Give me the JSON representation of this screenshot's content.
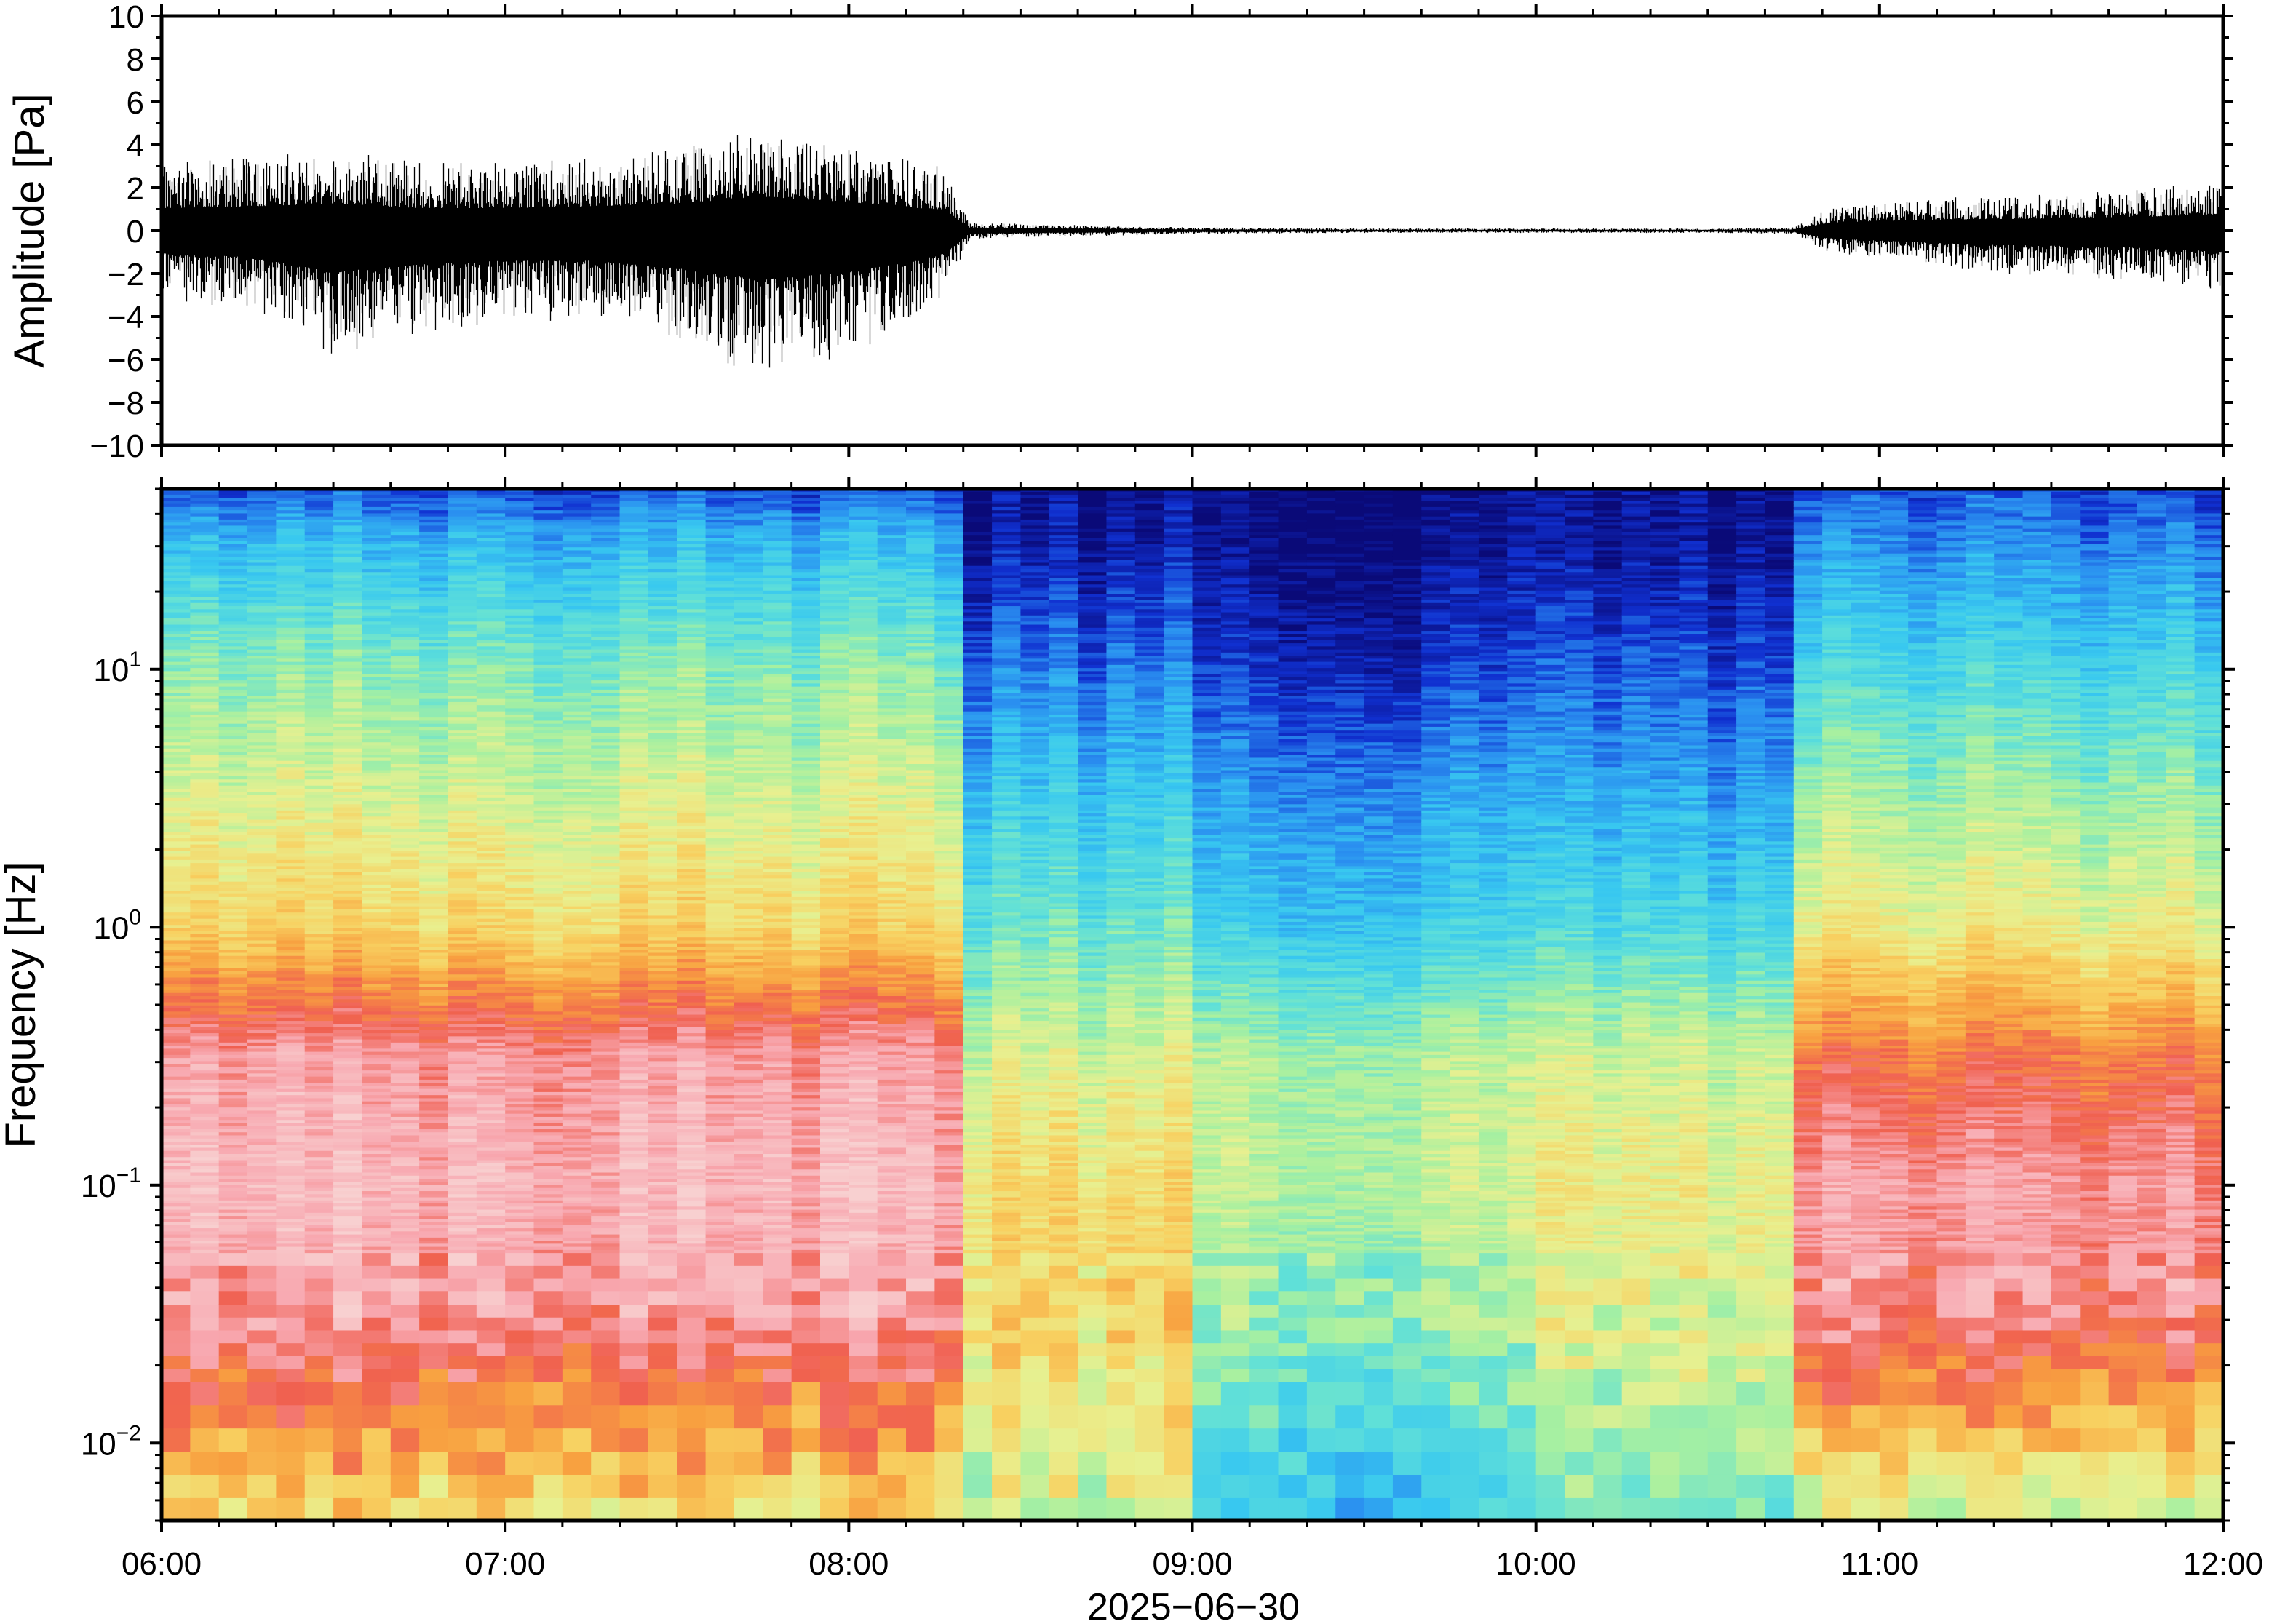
{
  "chart_data": [
    {
      "type": "line",
      "panel": "waveform",
      "ylabel": "Amplitude [Pa]",
      "ylim": [
        -10,
        10
      ],
      "yticks": [
        "10",
        "8",
        "6",
        "4",
        "2",
        "0",
        "−2",
        "−4",
        "−6",
        "−8",
        "−10"
      ],
      "ytick_values": [
        10,
        8,
        6,
        4,
        2,
        0,
        -2,
        -4,
        -6,
        -8,
        -10
      ],
      "xlim": [
        "06:00",
        "12:00"
      ],
      "series": [
        {
          "color": "#000000",
          "envelope": {
            "x_hours": [
              6.0,
              6.25,
              6.5,
              6.75,
              7.0,
              7.25,
              7.5,
              7.75,
              8.0,
              8.2,
              8.28,
              8.35,
              8.5,
              9.0,
              9.5,
              10.0,
              10.5,
              10.75,
              10.85,
              11.0,
              11.25,
              11.5,
              11.75,
              12.0
            ],
            "upper": [
              3.0,
              3.2,
              3.6,
              3.0,
              3.0,
              3.2,
              3.6,
              4.5,
              3.8,
              3.0,
              2.8,
              0.4,
              0.3,
              0.15,
              0.1,
              0.1,
              0.1,
              0.15,
              1.0,
              1.3,
              1.5,
              1.6,
              1.8,
              2.2
            ],
            "lower": [
              -3.0,
              -3.5,
              -5.5,
              -4.5,
              -4.0,
              -4.0,
              -5.0,
              -6.5,
              -5.5,
              -4.0,
              -3.0,
              -0.4,
              -0.3,
              -0.15,
              -0.1,
              -0.1,
              -0.1,
              -0.15,
              -1.0,
              -1.3,
              -1.8,
              -2.0,
              -2.2,
              -2.8
            ]
          }
        }
      ]
    },
    {
      "type": "heatmap",
      "panel": "spectrogram",
      "ylabel": "Frequency [Hz]",
      "yscale": "log",
      "ylim": [
        0.005,
        50
      ],
      "yticks": [
        {
          "base": "10",
          "exp": "1",
          "value": 10
        },
        {
          "base": "10",
          "exp": "0",
          "value": 1
        },
        {
          "base": "10",
          "exp": "−1",
          "value": 0.1
        },
        {
          "base": "10",
          "exp": "−2",
          "value": 0.01
        }
      ],
      "xlabel": "2025−06−30",
      "xticks": [
        "06:00",
        "07:00",
        "08:00",
        "09:00",
        "10:00",
        "11:00",
        "12:00"
      ],
      "xtick_hours": [
        6,
        7,
        8,
        9,
        10,
        11,
        12
      ],
      "colormap": [
        "#0a0a78",
        "#1030d0",
        "#2a8ff0",
        "#38c8f0",
        "#60e0d8",
        "#a8f0a0",
        "#e8f090",
        "#f8d060",
        "#f8a040",
        "#f06050",
        "#f8a8b0",
        "#f8d0d0"
      ],
      "color_scale": "relative power, colorbar not shown",
      "profiles": {
        "log10_freq": [
          -2.3,
          -2.0,
          -1.5,
          -1.0,
          -0.5,
          0.0,
          0.5,
          1.0,
          1.5,
          1.7
        ],
        "segments": [
          {
            "x_hours": [
              6.0,
              8.3
            ],
            "level": [
              0.6,
              0.72,
              0.9,
              0.95,
              0.9,
              0.62,
              0.52,
              0.42,
              0.25,
              0.12
            ]
          },
          {
            "x_hours": [
              8.3,
              9.0
            ],
            "level": [
              0.5,
              0.55,
              0.62,
              0.6,
              0.52,
              0.38,
              0.28,
              0.16,
              0.04,
              0.02
            ]
          },
          {
            "x_hours": [
              9.0,
              10.0
            ],
            "level": [
              0.28,
              0.35,
              0.45,
              0.5,
              0.48,
              0.3,
              0.22,
              0.1,
              0.02,
              0.02
            ]
          },
          {
            "x_hours": [
              10.0,
              10.75
            ],
            "level": [
              0.38,
              0.45,
              0.52,
              0.55,
              0.5,
              0.32,
              0.22,
              0.12,
              0.02,
              0.02
            ]
          },
          {
            "x_hours": [
              10.75,
              12.0
            ],
            "level": [
              0.48,
              0.65,
              0.88,
              0.9,
              0.78,
              0.56,
              0.45,
              0.32,
              0.18,
              0.12
            ]
          }
        ]
      }
    }
  ]
}
